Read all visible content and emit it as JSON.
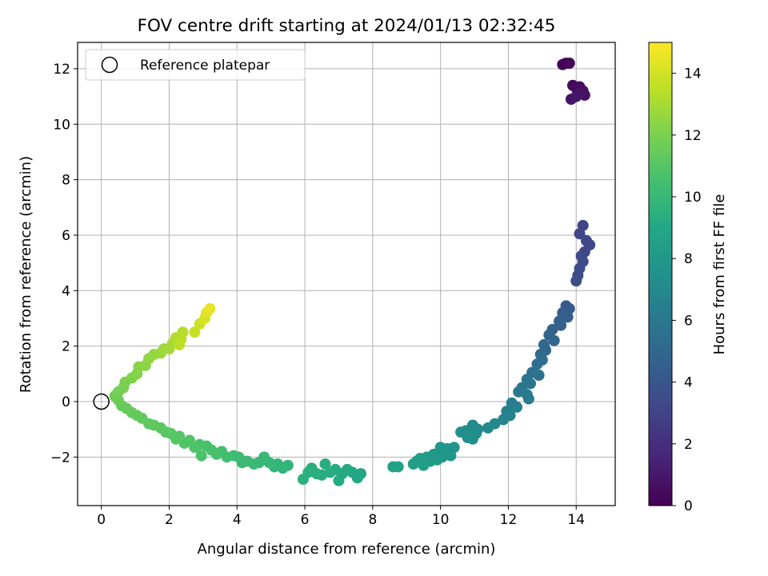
{
  "chart_data": {
    "type": "scatter",
    "title": "FOV centre drift starting at 2024/01/13 02:32:45",
    "xlabel": "Angular distance from reference (arcmin)",
    "ylabel": "Rotation from reference (arcmin)",
    "xlim": [
      -0.7,
      15.15
    ],
    "ylim": [
      -3.75,
      12.95
    ],
    "xticks": [
      0,
      2,
      4,
      6,
      8,
      10,
      12,
      14
    ],
    "yticks": [
      -2,
      0,
      2,
      4,
      6,
      8,
      10,
      12
    ],
    "yticklabels": [
      "−2",
      "0",
      "2",
      "4",
      "6",
      "8",
      "10",
      "12"
    ],
    "grid": true,
    "legend": {
      "position": "top-left",
      "entries": [
        "Reference platepar"
      ]
    },
    "reference_point": {
      "x": 0,
      "y": 0,
      "marker": "open-circle"
    },
    "colorbar": {
      "label": "Hours from first FF file",
      "colormap": "viridis",
      "range": [
        0,
        15
      ],
      "ticks": [
        0,
        2,
        4,
        6,
        8,
        10,
        12,
        14
      ]
    },
    "points": [
      {
        "x": 13.6,
        "y": 12.15,
        "t": 0.0
      },
      {
        "x": 13.7,
        "y": 12.2,
        "t": 0.1
      },
      {
        "x": 13.8,
        "y": 12.2,
        "t": 0.15
      },
      {
        "x": 13.9,
        "y": 11.4,
        "t": 0.3
      },
      {
        "x": 14.0,
        "y": 11.3,
        "t": 0.4
      },
      {
        "x": 14.1,
        "y": 11.35,
        "t": 0.5
      },
      {
        "x": 14.2,
        "y": 11.2,
        "t": 0.6
      },
      {
        "x": 14.25,
        "y": 11.05,
        "t": 0.7
      },
      {
        "x": 14.1,
        "y": 11.1,
        "t": 0.75
      },
      {
        "x": 13.85,
        "y": 10.9,
        "t": 0.8
      },
      {
        "x": 14.0,
        "y": 11.0,
        "t": 0.85
      },
      {
        "x": 14.2,
        "y": 6.35,
        "t": 3.0
      },
      {
        "x": 14.1,
        "y": 6.05,
        "t": 3.1
      },
      {
        "x": 14.3,
        "y": 5.8,
        "t": 3.2
      },
      {
        "x": 14.4,
        "y": 5.65,
        "t": 3.25
      },
      {
        "x": 14.25,
        "y": 5.4,
        "t": 3.3
      },
      {
        "x": 14.15,
        "y": 5.25,
        "t": 3.35
      },
      {
        "x": 14.2,
        "y": 5.05,
        "t": 3.4
      },
      {
        "x": 14.1,
        "y": 4.8,
        "t": 3.5
      },
      {
        "x": 14.05,
        "y": 4.55,
        "t": 3.55
      },
      {
        "x": 14.0,
        "y": 4.35,
        "t": 3.6
      },
      {
        "x": 13.7,
        "y": 3.45,
        "t": 4.2
      },
      {
        "x": 13.8,
        "y": 3.35,
        "t": 4.3
      },
      {
        "x": 13.6,
        "y": 3.2,
        "t": 4.4
      },
      {
        "x": 13.75,
        "y": 3.05,
        "t": 4.45
      },
      {
        "x": 13.5,
        "y": 2.9,
        "t": 4.5
      },
      {
        "x": 13.55,
        "y": 2.75,
        "t": 4.6
      },
      {
        "x": 13.3,
        "y": 2.6,
        "t": 4.7
      },
      {
        "x": 13.2,
        "y": 2.4,
        "t": 4.8
      },
      {
        "x": 13.35,
        "y": 2.2,
        "t": 4.9
      },
      {
        "x": 13.05,
        "y": 2.05,
        "t": 5.0
      },
      {
        "x": 13.1,
        "y": 1.85,
        "t": 5.1
      },
      {
        "x": 12.95,
        "y": 1.7,
        "t": 5.2
      },
      {
        "x": 13.0,
        "y": 1.5,
        "t": 5.3
      },
      {
        "x": 12.85,
        "y": 1.35,
        "t": 5.4
      },
      {
        "x": 12.7,
        "y": 1.05,
        "t": 5.55
      },
      {
        "x": 12.9,
        "y": 0.95,
        "t": 5.6
      },
      {
        "x": 12.55,
        "y": 0.8,
        "t": 5.7
      },
      {
        "x": 12.65,
        "y": 0.65,
        "t": 5.8
      },
      {
        "x": 12.4,
        "y": 0.5,
        "t": 5.9
      },
      {
        "x": 12.3,
        "y": 0.35,
        "t": 6.0
      },
      {
        "x": 12.55,
        "y": 0.25,
        "t": 6.1
      },
      {
        "x": 12.6,
        "y": 0.1,
        "t": 6.2
      },
      {
        "x": 12.1,
        "y": -0.05,
        "t": 6.35
      },
      {
        "x": 12.25,
        "y": -0.2,
        "t": 6.4
      },
      {
        "x": 11.95,
        "y": -0.35,
        "t": 6.5
      },
      {
        "x": 12.05,
        "y": -0.5,
        "t": 6.6
      },
      {
        "x": 11.85,
        "y": -0.65,
        "t": 6.7
      },
      {
        "x": 11.6,
        "y": -0.8,
        "t": 6.85
      },
      {
        "x": 11.4,
        "y": -0.95,
        "t": 7.0
      },
      {
        "x": 11.1,
        "y": -1.0,
        "t": 7.1
      },
      {
        "x": 10.95,
        "y": -0.85,
        "t": 7.15
      },
      {
        "x": 11.05,
        "y": -1.15,
        "t": 7.2
      },
      {
        "x": 10.75,
        "y": -1.05,
        "t": 7.3
      },
      {
        "x": 10.6,
        "y": -1.1,
        "t": 7.35
      },
      {
        "x": 10.8,
        "y": -1.3,
        "t": 7.4
      },
      {
        "x": 10.95,
        "y": -1.35,
        "t": 7.45
      },
      {
        "x": 10.4,
        "y": -1.65,
        "t": 7.6
      },
      {
        "x": 10.2,
        "y": -1.7,
        "t": 7.7
      },
      {
        "x": 10.0,
        "y": -1.65,
        "t": 7.8
      },
      {
        "x": 10.3,
        "y": -1.95,
        "t": 7.85
      },
      {
        "x": 10.05,
        "y": -2.0,
        "t": 7.9
      },
      {
        "x": 9.8,
        "y": -1.9,
        "t": 8.0
      },
      {
        "x": 9.9,
        "y": -2.1,
        "t": 8.05
      },
      {
        "x": 9.6,
        "y": -2.0,
        "t": 8.1
      },
      {
        "x": 9.7,
        "y": -2.15,
        "t": 8.15
      },
      {
        "x": 9.55,
        "y": -2.2,
        "t": 8.2
      },
      {
        "x": 9.4,
        "y": -2.05,
        "t": 8.25
      },
      {
        "x": 9.3,
        "y": -2.15,
        "t": 8.3
      },
      {
        "x": 9.2,
        "y": -2.25,
        "t": 8.35
      },
      {
        "x": 9.5,
        "y": -2.3,
        "t": 8.4
      },
      {
        "x": 8.75,
        "y": -2.35,
        "t": 8.55
      },
      {
        "x": 8.6,
        "y": -2.35,
        "t": 8.6
      },
      {
        "x": 7.65,
        "y": -2.6,
        "t": 8.9
      },
      {
        "x": 7.55,
        "y": -2.75,
        "t": 8.95
      },
      {
        "x": 7.4,
        "y": -2.55,
        "t": 9.0
      },
      {
        "x": 7.25,
        "y": -2.45,
        "t": 9.05
      },
      {
        "x": 7.1,
        "y": -2.6,
        "t": 9.1
      },
      {
        "x": 7.0,
        "y": -2.85,
        "t": 9.15
      },
      {
        "x": 6.9,
        "y": -2.45,
        "t": 9.2
      },
      {
        "x": 6.75,
        "y": -2.55,
        "t": 9.25
      },
      {
        "x": 6.6,
        "y": -2.25,
        "t": 9.3
      },
      {
        "x": 6.5,
        "y": -2.65,
        "t": 9.35
      },
      {
        "x": 6.35,
        "y": -2.6,
        "t": 9.4
      },
      {
        "x": 6.2,
        "y": -2.4,
        "t": 9.45
      },
      {
        "x": 6.1,
        "y": -2.55,
        "t": 9.5
      },
      {
        "x": 5.95,
        "y": -2.8,
        "t": 9.55
      },
      {
        "x": 5.5,
        "y": -2.3,
        "t": 9.7
      },
      {
        "x": 5.35,
        "y": -2.4,
        "t": 9.75
      },
      {
        "x": 5.2,
        "y": -2.25,
        "t": 9.8
      },
      {
        "x": 5.1,
        "y": -2.35,
        "t": 9.85
      },
      {
        "x": 4.95,
        "y": -2.2,
        "t": 9.9
      },
      {
        "x": 4.8,
        "y": -2.0,
        "t": 9.95
      },
      {
        "x": 4.65,
        "y": -2.2,
        "t": 10.0
      },
      {
        "x": 4.5,
        "y": -2.25,
        "t": 10.05
      },
      {
        "x": 4.3,
        "y": -2.15,
        "t": 10.1
      },
      {
        "x": 4.15,
        "y": -2.2,
        "t": 10.15
      },
      {
        "x": 4.05,
        "y": -2.0,
        "t": 10.2
      },
      {
        "x": 3.9,
        "y": -1.95,
        "t": 10.3
      },
      {
        "x": 3.7,
        "y": -2.0,
        "t": 10.4
      },
      {
        "x": 3.55,
        "y": -1.8,
        "t": 10.5
      },
      {
        "x": 3.4,
        "y": -1.9,
        "t": 10.55
      },
      {
        "x": 3.25,
        "y": -1.75,
        "t": 10.6
      },
      {
        "x": 3.1,
        "y": -1.6,
        "t": 10.65
      },
      {
        "x": 2.95,
        "y": -1.95,
        "t": 10.7
      },
      {
        "x": 2.9,
        "y": -1.55,
        "t": 10.75
      },
      {
        "x": 2.75,
        "y": -1.65,
        "t": 10.8
      },
      {
        "x": 2.6,
        "y": -1.4,
        "t": 10.85
      },
      {
        "x": 2.45,
        "y": -1.5,
        "t": 10.9
      },
      {
        "x": 2.3,
        "y": -1.25,
        "t": 10.95
      },
      {
        "x": 2.2,
        "y": -1.35,
        "t": 11.0
      },
      {
        "x": 2.05,
        "y": -1.15,
        "t": 11.05
      },
      {
        "x": 1.9,
        "y": -1.1,
        "t": 11.1
      },
      {
        "x": 1.75,
        "y": -0.95,
        "t": 11.15
      },
      {
        "x": 1.55,
        "y": -0.85,
        "t": 11.2
      },
      {
        "x": 1.4,
        "y": -0.8,
        "t": 11.25
      },
      {
        "x": 1.2,
        "y": -0.6,
        "t": 11.3
      },
      {
        "x": 1.05,
        "y": -0.5,
        "t": 11.35
      },
      {
        "x": 0.9,
        "y": -0.4,
        "t": 11.4
      },
      {
        "x": 0.75,
        "y": -0.25,
        "t": 11.45
      },
      {
        "x": 0.6,
        "y": -0.15,
        "t": 11.5
      },
      {
        "x": 0.5,
        "y": 0.05,
        "t": 11.6
      },
      {
        "x": 0.4,
        "y": 0.2,
        "t": 11.7
      },
      {
        "x": 0.5,
        "y": 0.35,
        "t": 11.8
      },
      {
        "x": 0.65,
        "y": 0.5,
        "t": 11.9
      },
      {
        "x": 0.7,
        "y": 0.7,
        "t": 12.0
      },
      {
        "x": 0.9,
        "y": 0.85,
        "t": 12.1
      },
      {
        "x": 1.05,
        "y": 1.0,
        "t": 12.2
      },
      {
        "x": 1.1,
        "y": 1.25,
        "t": 12.3
      },
      {
        "x": 1.3,
        "y": 1.3,
        "t": 12.4
      },
      {
        "x": 1.4,
        "y": 1.55,
        "t": 12.5
      },
      {
        "x": 1.55,
        "y": 1.7,
        "t": 12.6
      },
      {
        "x": 1.75,
        "y": 1.75,
        "t": 12.7
      },
      {
        "x": 1.85,
        "y": 1.9,
        "t": 12.8
      },
      {
        "x": 2.0,
        "y": 1.9,
        "t": 12.9
      },
      {
        "x": 2.1,
        "y": 2.1,
        "t": 13.0
      },
      {
        "x": 2.2,
        "y": 2.3,
        "t": 13.2
      },
      {
        "x": 2.35,
        "y": 2.25,
        "t": 13.3
      },
      {
        "x": 2.4,
        "y": 2.5,
        "t": 13.4
      },
      {
        "x": 2.3,
        "y": 2.05,
        "t": 13.5
      },
      {
        "x": 2.75,
        "y": 2.5,
        "t": 13.7
      },
      {
        "x": 2.9,
        "y": 2.8,
        "t": 13.9
      },
      {
        "x": 3.05,
        "y": 3.0,
        "t": 14.1
      },
      {
        "x": 3.1,
        "y": 3.2,
        "t": 14.3
      },
      {
        "x": 3.2,
        "y": 3.35,
        "t": 14.5
      }
    ]
  }
}
